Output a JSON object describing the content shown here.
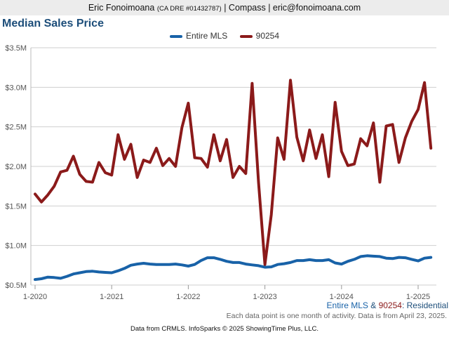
{
  "header": {
    "name": "Eric Fonoimoana",
    "dre": "(CA DRE #01432787)",
    "rest": "| Compass | eric@fonoimoana.com"
  },
  "caption": {
    "series1": "Entire MLS",
    "amp": " & ",
    "series2": "90254",
    "suffix": ": Residential",
    "note": "Each data point is one month of activity. Data is from April 23, 2025."
  },
  "footer": {
    "text": "Data from CRMLS. InfoSparks © 2025 ShowingTime Plus, LLC."
  },
  "colors": {
    "entire_mls": "#1862a8",
    "zip": "#8b1a1a",
    "title": "#1d4e7a"
  },
  "chart_data": {
    "type": "line",
    "title": "Median Sales Price",
    "ylim": [
      500000,
      3500000
    ],
    "yticks": [
      500000,
      1000000,
      1500000,
      2000000,
      2500000,
      3000000,
      3500000
    ],
    "ytick_labels": [
      "$0.5M",
      "$1.0M",
      "$1.5M",
      "$2.0M",
      "$2.5M",
      "$3.0M",
      "$3.5M"
    ],
    "xticks": [
      "1-2020",
      "1-2021",
      "1-2022",
      "1-2023",
      "1-2024",
      "1-2025"
    ],
    "grid": true,
    "legend": "top-center",
    "start": "1-2020",
    "x": [
      "1-2020",
      "2-2020",
      "3-2020",
      "4-2020",
      "5-2020",
      "6-2020",
      "7-2020",
      "8-2020",
      "9-2020",
      "10-2020",
      "11-2020",
      "12-2020",
      "1-2021",
      "2-2021",
      "3-2021",
      "4-2021",
      "5-2021",
      "6-2021",
      "7-2021",
      "8-2021",
      "9-2021",
      "10-2021",
      "11-2021",
      "12-2021",
      "1-2022",
      "2-2022",
      "3-2022",
      "4-2022",
      "5-2022",
      "6-2022",
      "7-2022",
      "8-2022",
      "9-2022",
      "10-2022",
      "11-2022",
      "12-2022",
      "1-2023",
      "2-2023",
      "3-2023",
      "4-2023",
      "5-2023",
      "6-2023",
      "7-2023",
      "8-2023",
      "9-2023",
      "10-2023",
      "11-2023",
      "12-2023",
      "1-2024",
      "2-2024",
      "3-2024",
      "4-2024",
      "5-2024",
      "6-2024",
      "7-2024",
      "8-2024",
      "9-2024",
      "10-2024",
      "11-2024",
      "12-2024",
      "1-2025",
      "2-2025",
      "3-2025"
    ],
    "series": [
      {
        "name": "Entire MLS",
        "values": [
          570000,
          580000,
          600000,
          595000,
          585000,
          610000,
          640000,
          655000,
          670000,
          675000,
          665000,
          660000,
          655000,
          680000,
          710000,
          750000,
          765000,
          775000,
          765000,
          760000,
          760000,
          760000,
          765000,
          755000,
          740000,
          760000,
          810000,
          845000,
          845000,
          825000,
          800000,
          785000,
          785000,
          765000,
          755000,
          745000,
          725000,
          730000,
          760000,
          770000,
          785000,
          810000,
          810000,
          820000,
          810000,
          810000,
          820000,
          780000,
          765000,
          800000,
          825000,
          860000,
          870000,
          865000,
          860000,
          840000,
          835000,
          850000,
          845000,
          825000,
          805000,
          840000,
          850000
        ]
      },
      {
        "name": "90254",
        "values": [
          1650000,
          1550000,
          1640000,
          1750000,
          1930000,
          1950000,
          2130000,
          1900000,
          1810000,
          1800000,
          2050000,
          1920000,
          1890000,
          2400000,
          2090000,
          2280000,
          1860000,
          2080000,
          2050000,
          2230000,
          2010000,
          2100000,
          2000000,
          2490000,
          2800000,
          2110000,
          2100000,
          1990000,
          2400000,
          2070000,
          2340000,
          1860000,
          2000000,
          1910000,
          3050000,
          1800000,
          760000,
          1390000,
          2360000,
          2090000,
          3090000,
          2370000,
          2070000,
          2460000,
          2100000,
          2400000,
          1870000,
          2810000,
          2190000,
          2010000,
          2030000,
          2350000,
          2260000,
          2550000,
          1800000,
          2510000,
          2530000,
          2050000,
          2360000,
          2570000,
          2720000,
          3060000,
          2230000
        ]
      }
    ]
  }
}
